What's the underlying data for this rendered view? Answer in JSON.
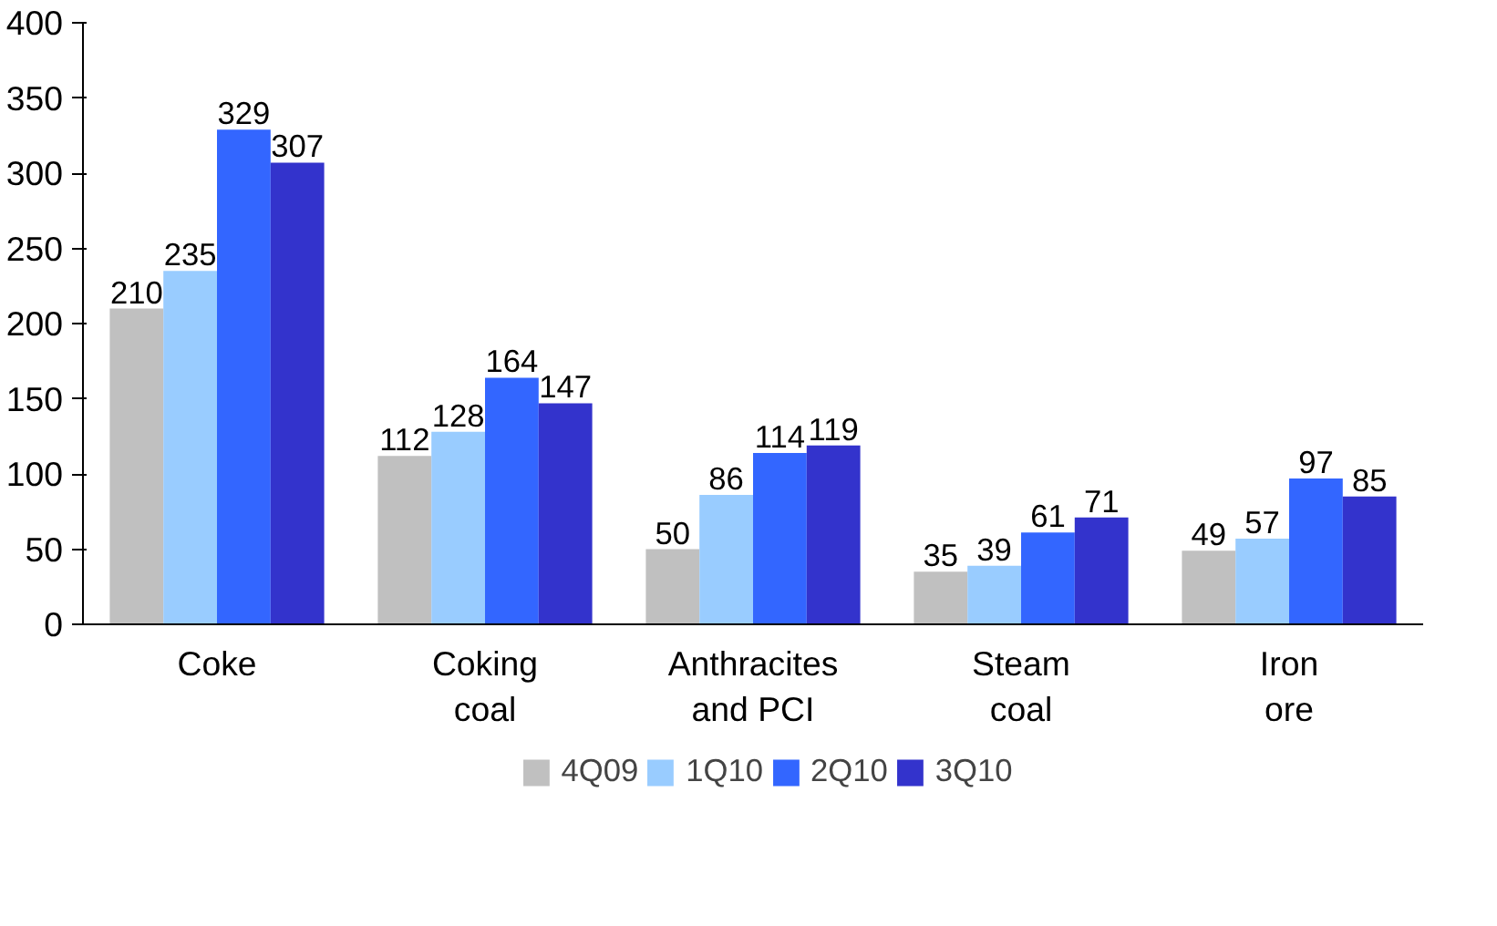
{
  "chart_data": {
    "type": "bar",
    "categories": [
      "Coke",
      "Coking\ncoal",
      "Anthracites\nand PCI",
      "Steam\ncoal",
      "Iron\nore"
    ],
    "series": [
      {
        "name": "4Q09",
        "color": "#c0c0c0",
        "values": [
          210,
          112,
          50,
          35,
          49
        ]
      },
      {
        "name": "1Q10",
        "color": "#99ccff",
        "values": [
          235,
          128,
          86,
          39,
          57
        ]
      },
      {
        "name": "2Q10",
        "color": "#3366ff",
        "values": [
          329,
          164,
          114,
          61,
          97
        ]
      },
      {
        "name": "3Q10",
        "color": "#3333cc",
        "values": [
          307,
          147,
          119,
          71,
          85
        ]
      }
    ],
    "ylim": [
      0,
      400
    ],
    "yticks": [
      0,
      50,
      100,
      150,
      200,
      250,
      300,
      350,
      400
    ],
    "grid": false,
    "legend": "bottom",
    "data_labels": true
  }
}
